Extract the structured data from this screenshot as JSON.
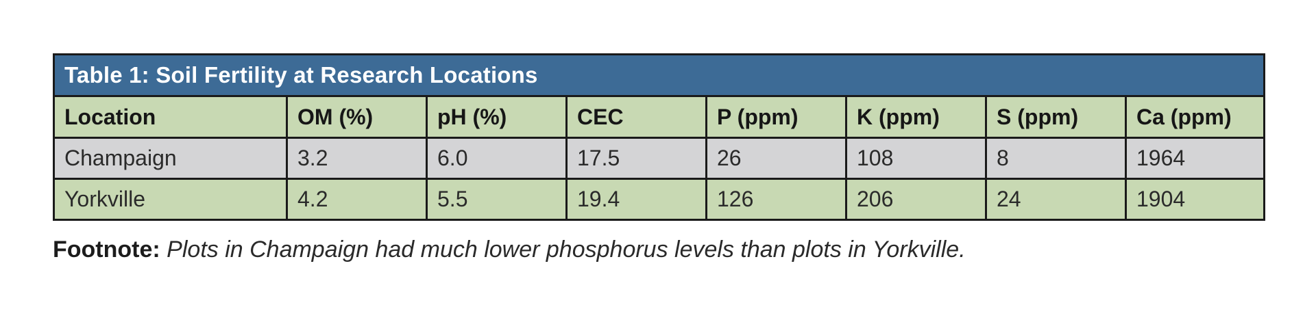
{
  "chart_data": {
    "type": "table",
    "title": "Table 1: Soil Fertility at Research Locations",
    "columns": [
      "Location",
      "OM (%)",
      "pH (%)",
      "CEC",
      "P (ppm)",
      "K (ppm)",
      "S (ppm)",
      "Ca (ppm)"
    ],
    "rows": [
      [
        "Champaign",
        "3.2",
        "6.0",
        "17.5",
        "26",
        "108",
        "8",
        "1964"
      ],
      [
        "Yorkville",
        "4.2",
        "5.5",
        "19.4",
        "126",
        "206",
        "24",
        "1904"
      ]
    ]
  },
  "footnote": {
    "label": "Footnote:",
    "text": "Plots in Champaign had much lower phosphorus levels than plots in Yorkville."
  },
  "colors": {
    "title_bg": "#3d6b96",
    "header_bg": "#c8d9b3",
    "row_grey": "#d4d4d6",
    "row_green": "#c8d9b3",
    "border": "#1a1a1a"
  }
}
